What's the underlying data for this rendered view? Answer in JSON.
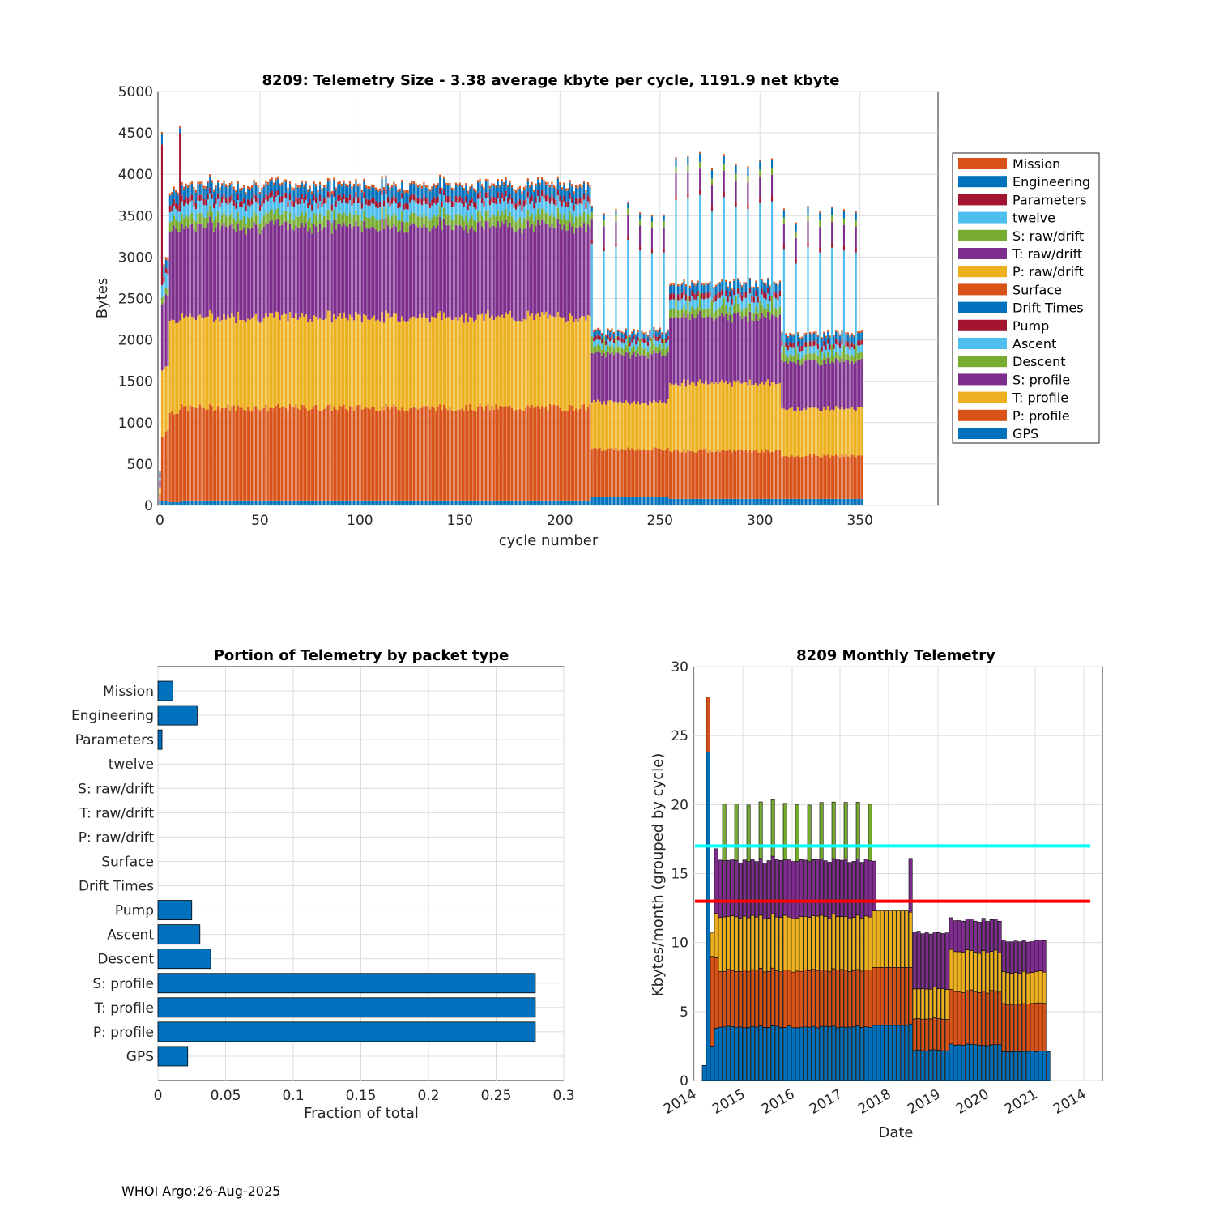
{
  "footer": "WHOI Argo:26-Aug-2025",
  "colors": {
    "blue": "#0072BD",
    "orange": "#D95319",
    "yellow": "#EDB120",
    "purple": "#7E2F8E",
    "green": "#77AC30",
    "cyan": "#4DBEEE",
    "maroon": "#A2142F",
    "grid": "#dcdcdc",
    "axis": "#262626",
    "cyan_line": "#00FFFF",
    "red_line": "#FF0000"
  },
  "chart_data": [
    {
      "type": "stacked-bar",
      "title": "8209: Telemetry Size - 3.38 average kbyte per cycle, 1191.9 net kbyte",
      "xlabel": "cycle number",
      "ylabel": "Bytes",
      "xlim": [
        -1,
        389
      ],
      "ylim": [
        0,
        5000
      ],
      "xticks": [
        0,
        50,
        100,
        150,
        200,
        250,
        300,
        350
      ],
      "yticks": [
        0,
        500,
        1000,
        1500,
        2000,
        2500,
        3000,
        3500,
        4000,
        4500,
        5000
      ],
      "legend_position": "right",
      "legend": [
        {
          "name": "Mission",
          "color": "#D95319"
        },
        {
          "name": "Engineering",
          "color": "#0072BD"
        },
        {
          "name": "Parameters",
          "color": "#A2142F"
        },
        {
          "name": "twelve",
          "color": "#4DBEEE"
        },
        {
          "name": "S: raw/drift",
          "color": "#77AC30"
        },
        {
          "name": "T: raw/drift",
          "color": "#7E2F8E"
        },
        {
          "name": "P: raw/drift",
          "color": "#EDB120"
        },
        {
          "name": "Surface",
          "color": "#D95319"
        },
        {
          "name": "Drift Times",
          "color": "#0072BD"
        },
        {
          "name": "Pump",
          "color": "#A2142F"
        },
        {
          "name": "Ascent",
          "color": "#4DBEEE"
        },
        {
          "name": "Descent",
          "color": "#77AC30"
        },
        {
          "name": "S: profile",
          "color": "#7E2F8E"
        },
        {
          "name": "T: profile",
          "color": "#EDB120"
        },
        {
          "name": "P: profile",
          "color": "#D95319"
        },
        {
          "name": "GPS",
          "color": "#0072BD"
        }
      ],
      "stack_order_bottom_up": [
        "GPS",
        "P: profile",
        "T: profile",
        "S: profile",
        "Descent",
        "Ascent",
        "Pump",
        "Drift Times",
        "Surface",
        "P: raw/drift",
        "T: raw/drift",
        "S: raw/drift",
        "twelve",
        "Parameters",
        "Engineering",
        "Mission"
      ],
      "phases": [
        {
          "cycles": [
            0,
            0
          ],
          "GPS": 60,
          "P: profile": 80,
          "T: profile": 80,
          "S: profile": 80,
          "Descent": 20,
          "Ascent": 20,
          "Pump": 20,
          "Engineering": 40,
          "Mission": 20,
          "note": "total ~350"
        },
        {
          "cycles": [
            1,
            2
          ],
          "GPS": 50,
          "P: profile": 800,
          "T: profile": 800,
          "S: profile": 800,
          "Descent": 80,
          "Ascent": 150,
          "Pump": 80,
          "Engineering": 120,
          "Mission": 30,
          "note": "cycle 1 total ~3900 (spike), cycle 2 ~2050"
        },
        {
          "cycles": [
            3,
            4
          ],
          "GPS": 50,
          "P: profile": 850,
          "T: profile": 800,
          "S: profile": 850,
          "Descent": 80,
          "Ascent": 180,
          "Pump": 60,
          "Engineering": 100,
          "Mission": 30,
          "note": "total ~2950"
        },
        {
          "cycles": [
            5,
            9
          ],
          "GPS": 40,
          "P: profile": 1100,
          "T: profile": 1100,
          "S: profile": 1100,
          "Descent": 120,
          "Ascent": 120,
          "Pump": 80,
          "Engineering": 120,
          "Mission": 30,
          "note": "total ~3820"
        },
        {
          "cycles": [
            10,
            10
          ],
          "note": "spike total ~4750"
        },
        {
          "cycles": [
            11,
            215
          ],
          "GPS": 60,
          "P: profile": 1120,
          "T: profile": 1100,
          "S: profile": 1100,
          "Descent": 130,
          "Ascent": 150,
          "Pump": 70,
          "Engineering": 130,
          "Mission": 30,
          "note": "total ~3850-3950"
        },
        {
          "cycles": [
            216,
            254
          ],
          "GPS": 100,
          "P: profile": 580,
          "T: profile": 570,
          "S: profile": 580,
          "Descent": 80,
          "Ascent": 70,
          "Pump": 50,
          "Engineering": 60,
          "Mission": 20,
          "note": "total ~2000-2150; every 6th cycle has raw/drift packets, total ~3600-3800"
        },
        {
          "cycles": [
            255,
            310
          ],
          "GPS": 80,
          "P: profile": 580,
          "T: profile": 820,
          "S: profile": 800,
          "Descent": 100,
          "Ascent": 120,
          "Pump": 70,
          "Engineering": 100,
          "Mission": 20,
          "note": "total ~2400-2600; raw/drift cycles up to ~3850"
        },
        {
          "cycles": [
            311,
            351
          ],
          "GPS": 80,
          "P: profile": 520,
          "T: profile": 570,
          "S: profile": 570,
          "Descent": 80,
          "Ascent": 90,
          "Pump": 60,
          "Engineering": 90,
          "Mission": 20,
          "note": "total ~2000-2100; raw/drift cycles ~3300-3600"
        }
      ]
    },
    {
      "type": "horizontal-bar",
      "title": "Portion of Telemetry by packet type",
      "xlabel": "Fraction of total",
      "xlim": [
        0,
        0.3
      ],
      "xticks": [
        0,
        0.05,
        0.1,
        0.15,
        0.2,
        0.25,
        0.3
      ],
      "xtick_labels": [
        "0",
        "0.05",
        "0.1",
        "0.15",
        "0.2",
        "0.25",
        "0.3"
      ],
      "categories_top_to_bottom": [
        "Mission",
        "Engineering",
        "Parameters",
        "twelve",
        "S: raw/drift",
        "T: raw/drift",
        "P: raw/drift",
        "Surface",
        "Drift Times",
        "Pump",
        "Ascent",
        "Descent",
        "S: profile",
        "T: profile",
        "P: profile",
        "GPS"
      ],
      "values": [
        0.011,
        0.029,
        0.003,
        0,
        0,
        0,
        0,
        0,
        0,
        0.025,
        0.031,
        0.039,
        0.279,
        0.279,
        0.279,
        0.022
      ],
      "bar_color": "#0072BD"
    },
    {
      "type": "stacked-bar",
      "title": "8209 Monthly Telemetry",
      "xlabel": "Date",
      "ylabel": "Kbytes/month (grouped by cycle)",
      "ylim": [
        0,
        30
      ],
      "yticks": [
        0,
        5,
        10,
        15,
        20,
        25,
        30
      ],
      "xtick_labels": [
        "2014",
        "2015",
        "2016",
        "2017",
        "2018",
        "2019",
        "2020",
        "2021",
        "2014"
      ],
      "reference_lines": [
        {
          "y": 17,
          "color": "#00FFFF"
        },
        {
          "y": 13,
          "color": "#FF0000"
        }
      ],
      "series_names_bottom_up": [
        "GPS",
        "P: profile",
        "T: profile",
        "S: profile",
        "extra"
      ],
      "months": [
        {
          "date": "2014-03",
          "values": [
            1.1,
            0,
            0,
            0,
            0
          ]
        },
        {
          "date": "2014-04",
          "values": [
            23.8,
            4.0,
            0,
            0,
            0
          ]
        },
        {
          "date": "2014-05",
          "values": [
            2.5,
            6.5,
            1.7,
            0,
            0
          ]
        },
        {
          "date": "2014-06",
          "values": [
            3.8,
            4.0,
            3.2,
            5.0,
            0
          ]
        },
        {
          "date": "2014-07",
          "values": [
            3.9,
            4.2,
            3.6,
            4.2,
            0
          ]
        },
        {
          "date": "2014-08",
          "values": [
            3.9,
            4.2,
            3.8,
            4.1,
            4.1
          ]
        },
        {
          "date": "2017-08",
          "values": [
            3.9,
            4.3,
            4.1,
            3.9,
            0
          ]
        },
        {
          "date": "2018-03",
          "values": [
            4.1,
            4.1,
            4.1,
            0,
            0
          ]
        },
        {
          "date": "2018-06",
          "values": [
            4.2,
            4.0,
            4.0,
            3.8,
            0
          ]
        },
        {
          "date": "2018-07",
          "values": [
            2.2,
            2.5,
            2.0,
            4.2,
            0
          ]
        },
        {
          "date": "2019-03",
          "values": [
            2.0,
            1.8,
            1.2,
            4.1,
            0
          ]
        },
        {
          "date": "2019-04",
          "values": [
            2.5,
            3.8,
            2.6,
            3.0,
            0
          ]
        },
        {
          "date": "2020-02",
          "values": [
            2.6,
            4.0,
            2.9,
            2.3,
            0
          ]
        },
        {
          "date": "2020-05",
          "values": [
            2.1,
            3.6,
            2.4,
            2.2,
            0
          ]
        },
        {
          "date": "2021-03",
          "values": [
            2.0,
            3.6,
            2.2,
            2.2,
            0
          ]
        },
        {
          "date": "2021-04",
          "values": [
            2.1,
            0,
            0,
            0,
            0
          ]
        }
      ]
    }
  ]
}
